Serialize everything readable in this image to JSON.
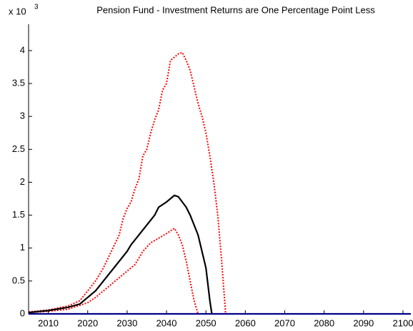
{
  "chart_data": {
    "type": "line",
    "title": "Pension Fund - Investment Returns are One Percentage Point Less",
    "y_scale_label": "x 10",
    "y_scale_exponent": "3",
    "xlim": [
      2005,
      2102
    ],
    "ylim": [
      0,
      4.4
    ],
    "xticks": [
      2010,
      2020,
      2030,
      2040,
      2050,
      2060,
      2070,
      2080,
      2090,
      2100
    ],
    "yticks": [
      0,
      0.5,
      1,
      1.5,
      2,
      2.5,
      3,
      3.5,
      4
    ],
    "series": [
      {
        "color": "#00008b",
        "style": "solid",
        "x": [
          2005,
          2102
        ],
        "values": [
          0,
          0
        ]
      },
      {
        "color": "#ff0000",
        "style": "dotted",
        "x": [
          2005,
          2010,
          2015,
          2018,
          2020,
          2022,
          2024,
          2026,
          2028,
          2029,
          2030,
          2031,
          2032,
          2033,
          2034,
          2035,
          2036,
          2037,
          2038,
          2039,
          2040,
          2041,
          2042,
          2043,
          2044,
          2045,
          2046,
          2047,
          2048,
          2049,
          2050,
          2051,
          2052,
          2053,
          2054,
          2055
        ],
        "values": [
          0.03,
          0.06,
          0.12,
          0.2,
          0.35,
          0.5,
          0.7,
          0.95,
          1.2,
          1.45,
          1.6,
          1.7,
          1.9,
          2.05,
          2.4,
          2.5,
          2.75,
          2.95,
          3.1,
          3.4,
          3.5,
          3.85,
          3.9,
          3.95,
          3.97,
          3.85,
          3.7,
          3.45,
          3.2,
          3.0,
          2.75,
          2.4,
          2.0,
          1.5,
          0.8,
          0
        ]
      },
      {
        "color": "#ff0000",
        "style": "dotted",
        "x": [
          2005,
          2010,
          2015,
          2020,
          2022,
          2024,
          2026,
          2028,
          2030,
          2032,
          2034,
          2036,
          2038,
          2040,
          2042,
          2043,
          2044,
          2045,
          2046,
          2047,
          2048
        ],
        "values": [
          0.02,
          0.04,
          0.07,
          0.17,
          0.25,
          0.35,
          0.45,
          0.55,
          0.65,
          0.75,
          0.95,
          1.08,
          1.15,
          1.22,
          1.3,
          1.2,
          1.05,
          0.8,
          0.5,
          0.2,
          0
        ]
      },
      {
        "color": "#000000",
        "style": "solid",
        "x": [
          2005,
          2010,
          2015,
          2018,
          2020,
          2022,
          2024,
          2026,
          2028,
          2030,
          2031,
          2033,
          2035,
          2037,
          2038,
          2040,
          2041,
          2042,
          2043,
          2044,
          2045,
          2046,
          2048,
          2050,
          2051,
          2051.5
        ],
        "values": [
          0.02,
          0.05,
          0.1,
          0.15,
          0.25,
          0.35,
          0.5,
          0.65,
          0.8,
          0.95,
          1.05,
          1.2,
          1.35,
          1.5,
          1.62,
          1.7,
          1.75,
          1.8,
          1.78,
          1.7,
          1.62,
          1.5,
          1.2,
          0.7,
          0.2,
          0
        ]
      }
    ]
  }
}
